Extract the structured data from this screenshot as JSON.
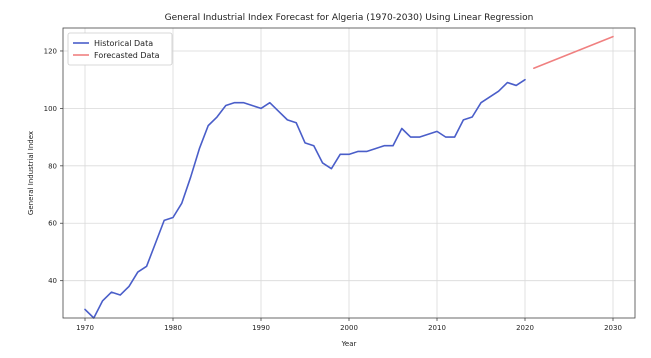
{
  "chart_data": {
    "type": "line",
    "title": "General Industrial Index Forecast for Algeria (1970-2030) Using Linear Regression",
    "xlabel": "Year",
    "ylabel": "General Industrial Index",
    "xlim": [
      1967.5,
      2032.5
    ],
    "ylim": [
      27,
      128
    ],
    "x_ticks": [
      1970,
      1980,
      1990,
      2000,
      2010,
      2020,
      2030
    ],
    "y_ticks": [
      40,
      60,
      80,
      100,
      120
    ],
    "grid": true,
    "legend_position": "top-left",
    "series": [
      {
        "name": "Historical Data",
        "color": "#4a5ec9",
        "x": [
          1970,
          1971,
          1972,
          1973,
          1974,
          1975,
          1976,
          1977,
          1978,
          1979,
          1980,
          1981,
          1982,
          1983,
          1984,
          1985,
          1986,
          1987,
          1988,
          1989,
          1990,
          1991,
          1992,
          1993,
          1994,
          1995,
          1996,
          1997,
          1998,
          1999,
          2000,
          2001,
          2002,
          2003,
          2004,
          2005,
          2006,
          2007,
          2008,
          2009,
          2010,
          2011,
          2012,
          2013,
          2014,
          2015,
          2016,
          2017,
          2018,
          2019,
          2020
        ],
        "y": [
          30,
          27,
          33,
          36,
          35,
          38,
          43,
          45,
          53,
          61,
          62,
          67,
          76,
          86,
          94,
          97,
          101,
          102,
          102,
          101,
          100,
          102,
          99,
          96,
          95,
          88,
          87,
          81,
          79,
          84,
          84,
          85,
          85,
          86,
          87,
          87,
          93,
          90,
          90,
          91,
          92,
          90,
          90,
          96,
          97,
          102,
          104,
          106,
          109,
          108,
          110
        ]
      },
      {
        "name": "Forecasted Data",
        "color": "#f08080",
        "x": [
          2021,
          2030
        ],
        "y": [
          114,
          125
        ]
      }
    ]
  }
}
